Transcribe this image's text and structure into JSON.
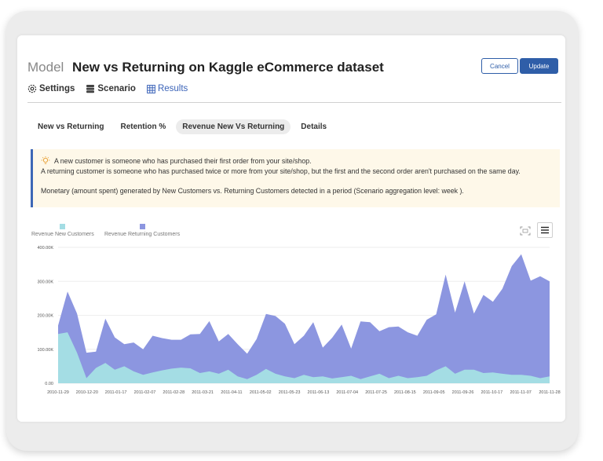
{
  "header": {
    "model_label": "Model",
    "model_name": "New vs Returning on Kaggle eCommerce dataset",
    "cancel_label": "Cancel",
    "update_label": "Update"
  },
  "nav_tabs": [
    {
      "label": "Settings",
      "icon": "gear-icon"
    },
    {
      "label": "Scenario",
      "icon": "database-icon"
    },
    {
      "label": "Results",
      "icon": "table-icon",
      "active": true
    }
  ],
  "sub_tabs": [
    {
      "label": "New vs Returning"
    },
    {
      "label": "Retention %"
    },
    {
      "label": "Revenue New Vs Returning",
      "active": true
    },
    {
      "label": "Details"
    }
  ],
  "info": {
    "icon": "lightbulb-icon",
    "line1": "A new customer is someone who has purchased their first order from your site/shop.",
    "line2": "A returning customer is someone who has purchased twice or more from your site/shop, but the first and the second order aren't purchased on the same day.",
    "line3": "Monetary (amount spent) generated by New Customers vs. Returning Customers detected in a period (Scenario aggregation level: week )."
  },
  "chart_data": {
    "type": "area",
    "stacked": true,
    "ylim": [
      0,
      400000
    ],
    "y_ticks": [
      "0.00",
      "100.00K",
      "200.00K",
      "300.00K",
      "400.00K"
    ],
    "x_tick_labels": [
      "2010-11-29",
      "2010-12-20",
      "2011-01-17",
      "2011-02-07",
      "2011-02-28",
      "2011-03-21",
      "2011-04-11",
      "2011-05-02",
      "2011-05-23",
      "2011-06-13",
      "2011-07-04",
      "2011-07-25",
      "2011-08-15",
      "2011-09-05",
      "2011-09-26",
      "2011-10-17",
      "2011-11-07",
      "2011-11-28"
    ],
    "legend": [
      "Revenue New Customers",
      "Revenue Returning Customers"
    ],
    "colors": {
      "new": "#a4dde4",
      "returning": "#8c96e0"
    },
    "series": [
      {
        "name": "Revenue New Customers",
        "values": [
          145000,
          150000,
          90000,
          15000,
          45000,
          60000,
          40000,
          50000,
          35000,
          25000,
          32000,
          38000,
          43000,
          46000,
          44000,
          30000,
          35000,
          28000,
          40000,
          20000,
          12000,
          25000,
          42000,
          28000,
          20000,
          15000,
          25000,
          18000,
          20000,
          14000,
          18000,
          22000,
          12000,
          20000,
          28000,
          15000,
          22000,
          15000,
          18000,
          22000,
          38000,
          50000,
          28000,
          40000,
          40000,
          30000,
          32000,
          28000,
          25000,
          25000,
          22000,
          15000,
          20000
        ]
      },
      {
        "name": "Revenue Returning Customers",
        "values": [
          25000,
          120000,
          115000,
          75000,
          48000,
          130000,
          95000,
          65000,
          85000,
          75000,
          108000,
          95000,
          85000,
          82000,
          100000,
          115000,
          148000,
          95000,
          105000,
          95000,
          75000,
          105000,
          162000,
          170000,
          155000,
          100000,
          115000,
          162000,
          85000,
          120000,
          155000,
          80000,
          170000,
          160000,
          125000,
          150000,
          145000,
          135000,
          122000,
          165000,
          165000,
          270000,
          180000,
          260000,
          165000,
          230000,
          208000,
          250000,
          320000,
          355000,
          280000,
          300000,
          280000
        ]
      }
    ]
  }
}
